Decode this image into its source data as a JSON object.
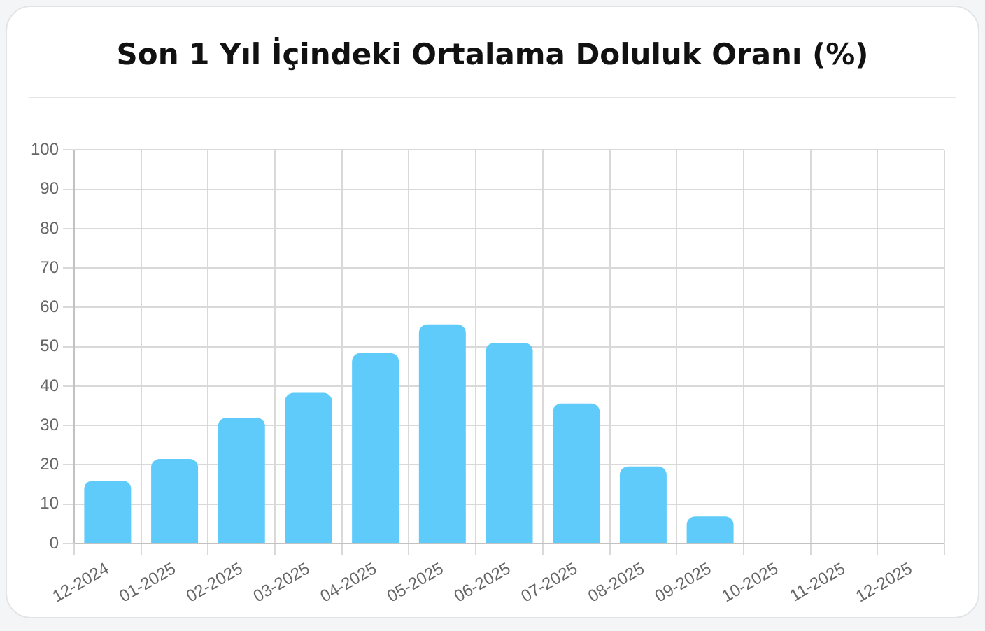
{
  "chart_data": {
    "type": "bar",
    "title": "Son 1 Yıl İçindeki Ortalama Doluluk Oranı (%)",
    "categories": [
      "12-2024",
      "01-2025",
      "02-2025",
      "03-2025",
      "04-2025",
      "05-2025",
      "06-2025",
      "07-2025",
      "08-2025",
      "09-2025",
      "10-2025",
      "11-2025",
      "12-2025"
    ],
    "values": [
      16,
      21.5,
      32,
      38.3,
      48.4,
      55.7,
      51,
      35.6,
      19.6,
      6.9,
      null,
      null,
      0
    ],
    "color": "#5ecbfb",
    "ylim": [
      0,
      100
    ],
    "yticks": [
      0,
      10,
      20,
      30,
      40,
      50,
      60,
      70,
      80,
      90,
      100
    ],
    "grid": true,
    "legend": false
  }
}
